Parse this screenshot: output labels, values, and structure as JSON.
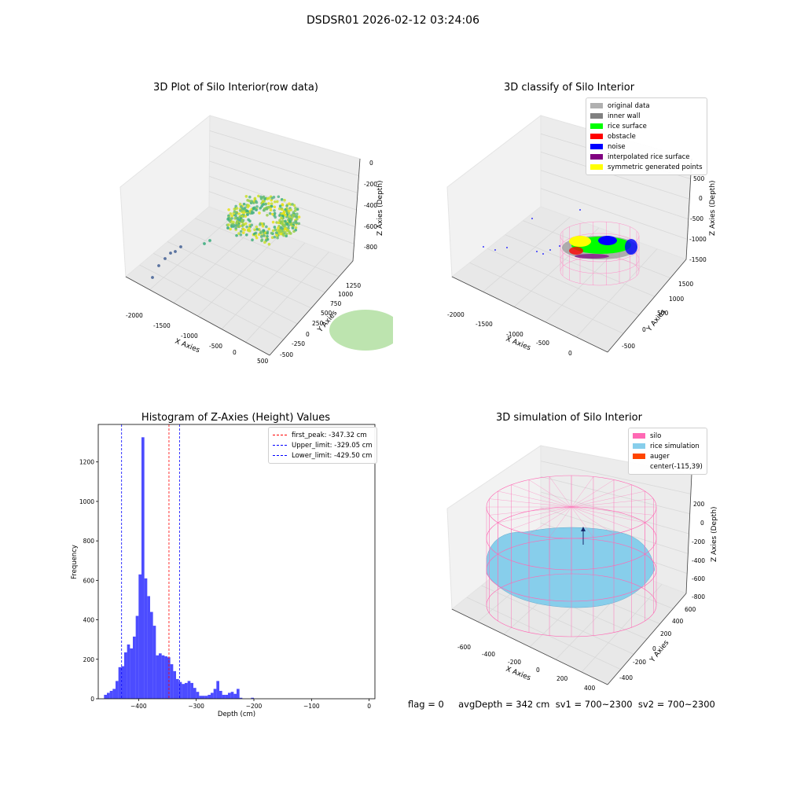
{
  "figure": {
    "title": "DSDSR01 2026-02-12 03:24:06"
  },
  "footer": {
    "text": "flag = 0     avgDepth = 342 cm  sv1 = 700~2300  sv2 = 700~2300"
  },
  "panel1": {
    "title": "3D Plot of Silo Interior(row data)",
    "x_label": "X Axies",
    "y_label": "Y Axies",
    "z_label": "Z Axies (Depth)",
    "x_ticks": [
      "-2000",
      "-1500",
      "-1000",
      "-500",
      "0",
      "500"
    ],
    "y_ticks": [
      "-500",
      "-250",
      "0",
      "250",
      "500",
      "750",
      "1000",
      "1250"
    ],
    "z_ticks": [
      "0",
      "-200",
      "-400",
      "-600",
      "-800"
    ]
  },
  "panel2": {
    "title": "3D classify of Silo Interior",
    "x_label": "X Axies",
    "y_label": "Y Axies",
    "z_label": "Z Axies (Depth)",
    "x_ticks": [
      "-2000",
      "-1500",
      "-1000",
      "-500",
      "0"
    ],
    "y_ticks": [
      "-500",
      "0",
      "500",
      "1000",
      "1500"
    ],
    "z_ticks": [
      "500",
      "0",
      "-500",
      "-1000",
      "-1500"
    ],
    "legend": [
      {
        "label": "original data",
        "color": "#b0b0b0"
      },
      {
        "label": "inner wall",
        "color": "#808080"
      },
      {
        "label": "rice surface",
        "color": "#00ff00"
      },
      {
        "label": "obstacle",
        "color": "#ff0000"
      },
      {
        "label": "noise",
        "color": "#0000ff"
      },
      {
        "label": "interpolated rice surface",
        "color": "#800080"
      },
      {
        "label": "symmetric generated points",
        "color": "#ffff00"
      }
    ]
  },
  "panel4": {
    "title": "3D simulation of Silo Interior",
    "x_label": "X Axies",
    "y_label": "Y Axies",
    "z_label": "Z Axies (Depth)",
    "x_ticks": [
      "-600",
      "-400",
      "-200",
      "0",
      "200",
      "400"
    ],
    "y_ticks": [
      "-400",
      "-200",
      "0",
      "200",
      "400",
      "600"
    ],
    "z_ticks": [
      "200",
      "0",
      "-200",
      "-400",
      "-600",
      "-800"
    ],
    "legend": [
      {
        "label": "silo",
        "color": "#ff69b4"
      },
      {
        "label": "rice simulation",
        "color": "#87ceeb"
      },
      {
        "label": "auger",
        "color": "#ff4500"
      },
      {
        "label": "center(-115,39)",
        "color": ""
      }
    ]
  },
  "chart_data": {
    "type": "bar",
    "title": "Histogram of Z-Axies (Height) Values",
    "xlabel": "Depth (cm)",
    "ylabel": "Frequency",
    "xlim": [
      -470,
      10
    ],
    "ylim": [
      0,
      1390
    ],
    "x_ticks": [
      -400,
      -300,
      -200,
      -100,
      0
    ],
    "y_ticks": [
      0,
      200,
      400,
      600,
      800,
      1000,
      1200
    ],
    "bar_color": "#0000ff",
    "bin_start": -460,
    "bin_width": 5,
    "values": [
      20,
      30,
      40,
      50,
      90,
      160,
      165,
      235,
      275,
      255,
      315,
      420,
      630,
      1325,
      610,
      520,
      440,
      370,
      220,
      230,
      220,
      215,
      210,
      175,
      140,
      100,
      85,
      75,
      80,
      90,
      80,
      55,
      35,
      15,
      15,
      15,
      20,
      30,
      50,
      90,
      40,
      20,
      20,
      30,
      35,
      25,
      50,
      5,
      0,
      0,
      0,
      5
    ],
    "reference_lines": [
      {
        "label": "first_peak: -347.32 cm",
        "x": -347.32,
        "color": "#ff0000"
      },
      {
        "label": "Upper_limit: -329.05 cm",
        "x": -329.05,
        "color": "#0000ff"
      },
      {
        "label": "Lower_limit: -429.50 cm",
        "x": -429.5,
        "color": "#0000ff"
      }
    ],
    "legend_position": "top-right"
  }
}
